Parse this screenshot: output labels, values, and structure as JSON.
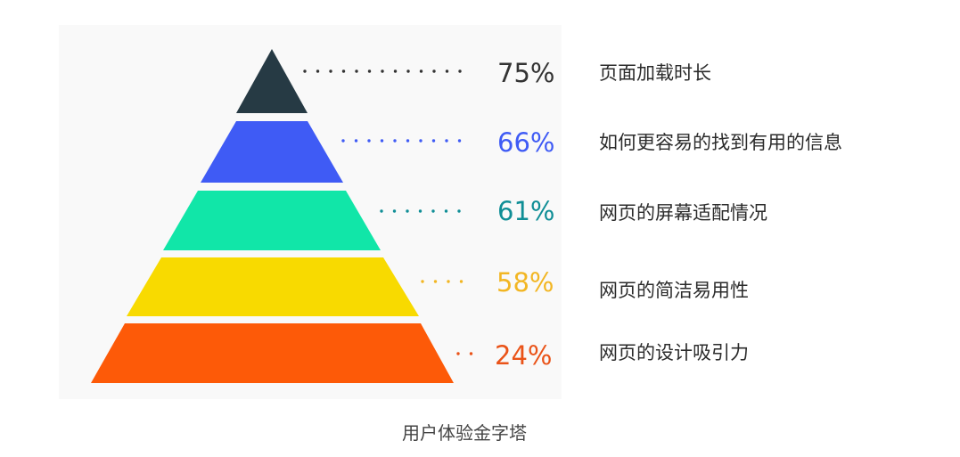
{
  "caption": "用户体验金字塔",
  "levels": [
    {
      "percent": "75%",
      "label": "页面加载时长",
      "color": "#263a44"
    },
    {
      "percent": "66%",
      "label": "如何更容易的找到有用的信息",
      "color": "#3f5bf5"
    },
    {
      "percent": "61%",
      "label": "网页的屏幕适配情况",
      "color": "#11e6a8"
    },
    {
      "percent": "58%",
      "label": "网页的简洁易用性",
      "color": "#f8da00"
    },
    {
      "percent": "24%",
      "label": "网页的设计吸引力",
      "color": "#fd5a08"
    }
  ],
  "percent_colors": [
    "#333333",
    "#3f5bf5",
    "#0f8e96",
    "#f2b623",
    "#ea5318"
  ]
}
